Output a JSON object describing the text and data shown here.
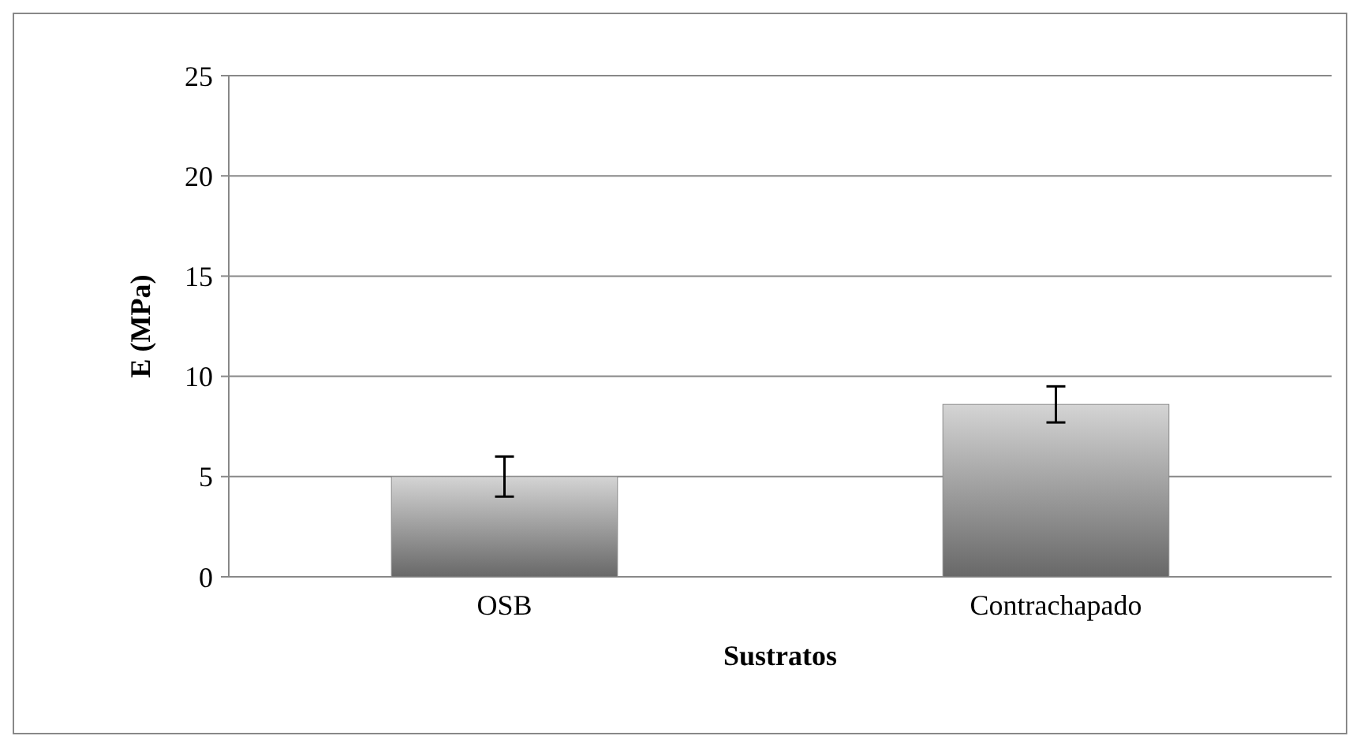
{
  "chart_data": {
    "type": "bar",
    "xlabel": "Sustratos",
    "ylabel": "E (MPa)",
    "categories": [
      "OSB",
      "Contrachapado"
    ],
    "values": [
      5.0,
      8.6
    ],
    "errors": [
      1.0,
      0.9
    ],
    "color": "#8a8a8a",
    "ylim": [
      0,
      25
    ],
    "yticks": [
      0,
      5,
      10,
      15,
      20,
      25
    ],
    "grid": "y"
  }
}
